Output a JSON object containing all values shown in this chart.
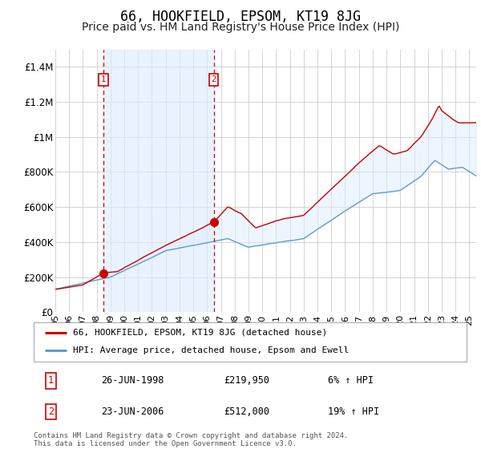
{
  "title": "66, HOOKFIELD, EPSOM, KT19 8JG",
  "subtitle": "Price paid vs. HM Land Registry's House Price Index (HPI)",
  "title_fontsize": 12,
  "subtitle_fontsize": 10,
  "ylabel_ticks": [
    "£0",
    "£200K",
    "£400K",
    "£600K",
    "£800K",
    "£1M",
    "£1.2M",
    "£1.4M"
  ],
  "ytick_values": [
    0,
    200000,
    400000,
    600000,
    800000,
    1000000,
    1200000,
    1400000
  ],
  "ylim": [
    0,
    1500000
  ],
  "xlim_start": 1995.0,
  "xlim_end": 2025.5,
  "xtick_years": [
    1995,
    1996,
    1997,
    1998,
    1999,
    2000,
    2001,
    2002,
    2003,
    2004,
    2005,
    2006,
    2007,
    2008,
    2009,
    2010,
    2011,
    2012,
    2013,
    2014,
    2015,
    2016,
    2017,
    2018,
    2019,
    2020,
    2021,
    2022,
    2023,
    2024,
    2025
  ],
  "xtick_labels": [
    "95",
    "96",
    "97",
    "98",
    "99",
    "00",
    "01",
    "02",
    "03",
    "04",
    "05",
    "06",
    "07",
    "08",
    "09",
    "10",
    "11",
    "12",
    "13",
    "14",
    "15",
    "16",
    "17",
    "18",
    "19",
    "20",
    "21",
    "22",
    "23",
    "24",
    "25"
  ],
  "sale1_x": 1998.48,
  "sale1_y": 219950,
  "sale1_label": "1",
  "sale1_date": "26-JUN-1998",
  "sale1_price": "£219,950",
  "sale1_hpi": "6% ↑ HPI",
  "sale2_x": 2006.48,
  "sale2_y": 512000,
  "sale2_label": "2",
  "sale2_date": "23-JUN-2006",
  "sale2_price": "£512,000",
  "sale2_hpi": "19% ↑ HPI",
  "red_line_color": "#cc0000",
  "blue_line_color": "#6699cc",
  "fill_color": "#ddeeff",
  "marker_color": "#cc0000",
  "vline_color": "#cc0000",
  "box_color": "#cc0000",
  "grid_color": "#cccccc",
  "bg_color": "#ffffff",
  "footer": "Contains HM Land Registry data © Crown copyright and database right 2024.\nThis data is licensed under the Open Government Licence v3.0.",
  "legend_line1": "66, HOOKFIELD, EPSOM, KT19 8JG (detached house)",
  "legend_line2": "HPI: Average price, detached house, Epsom and Ewell"
}
